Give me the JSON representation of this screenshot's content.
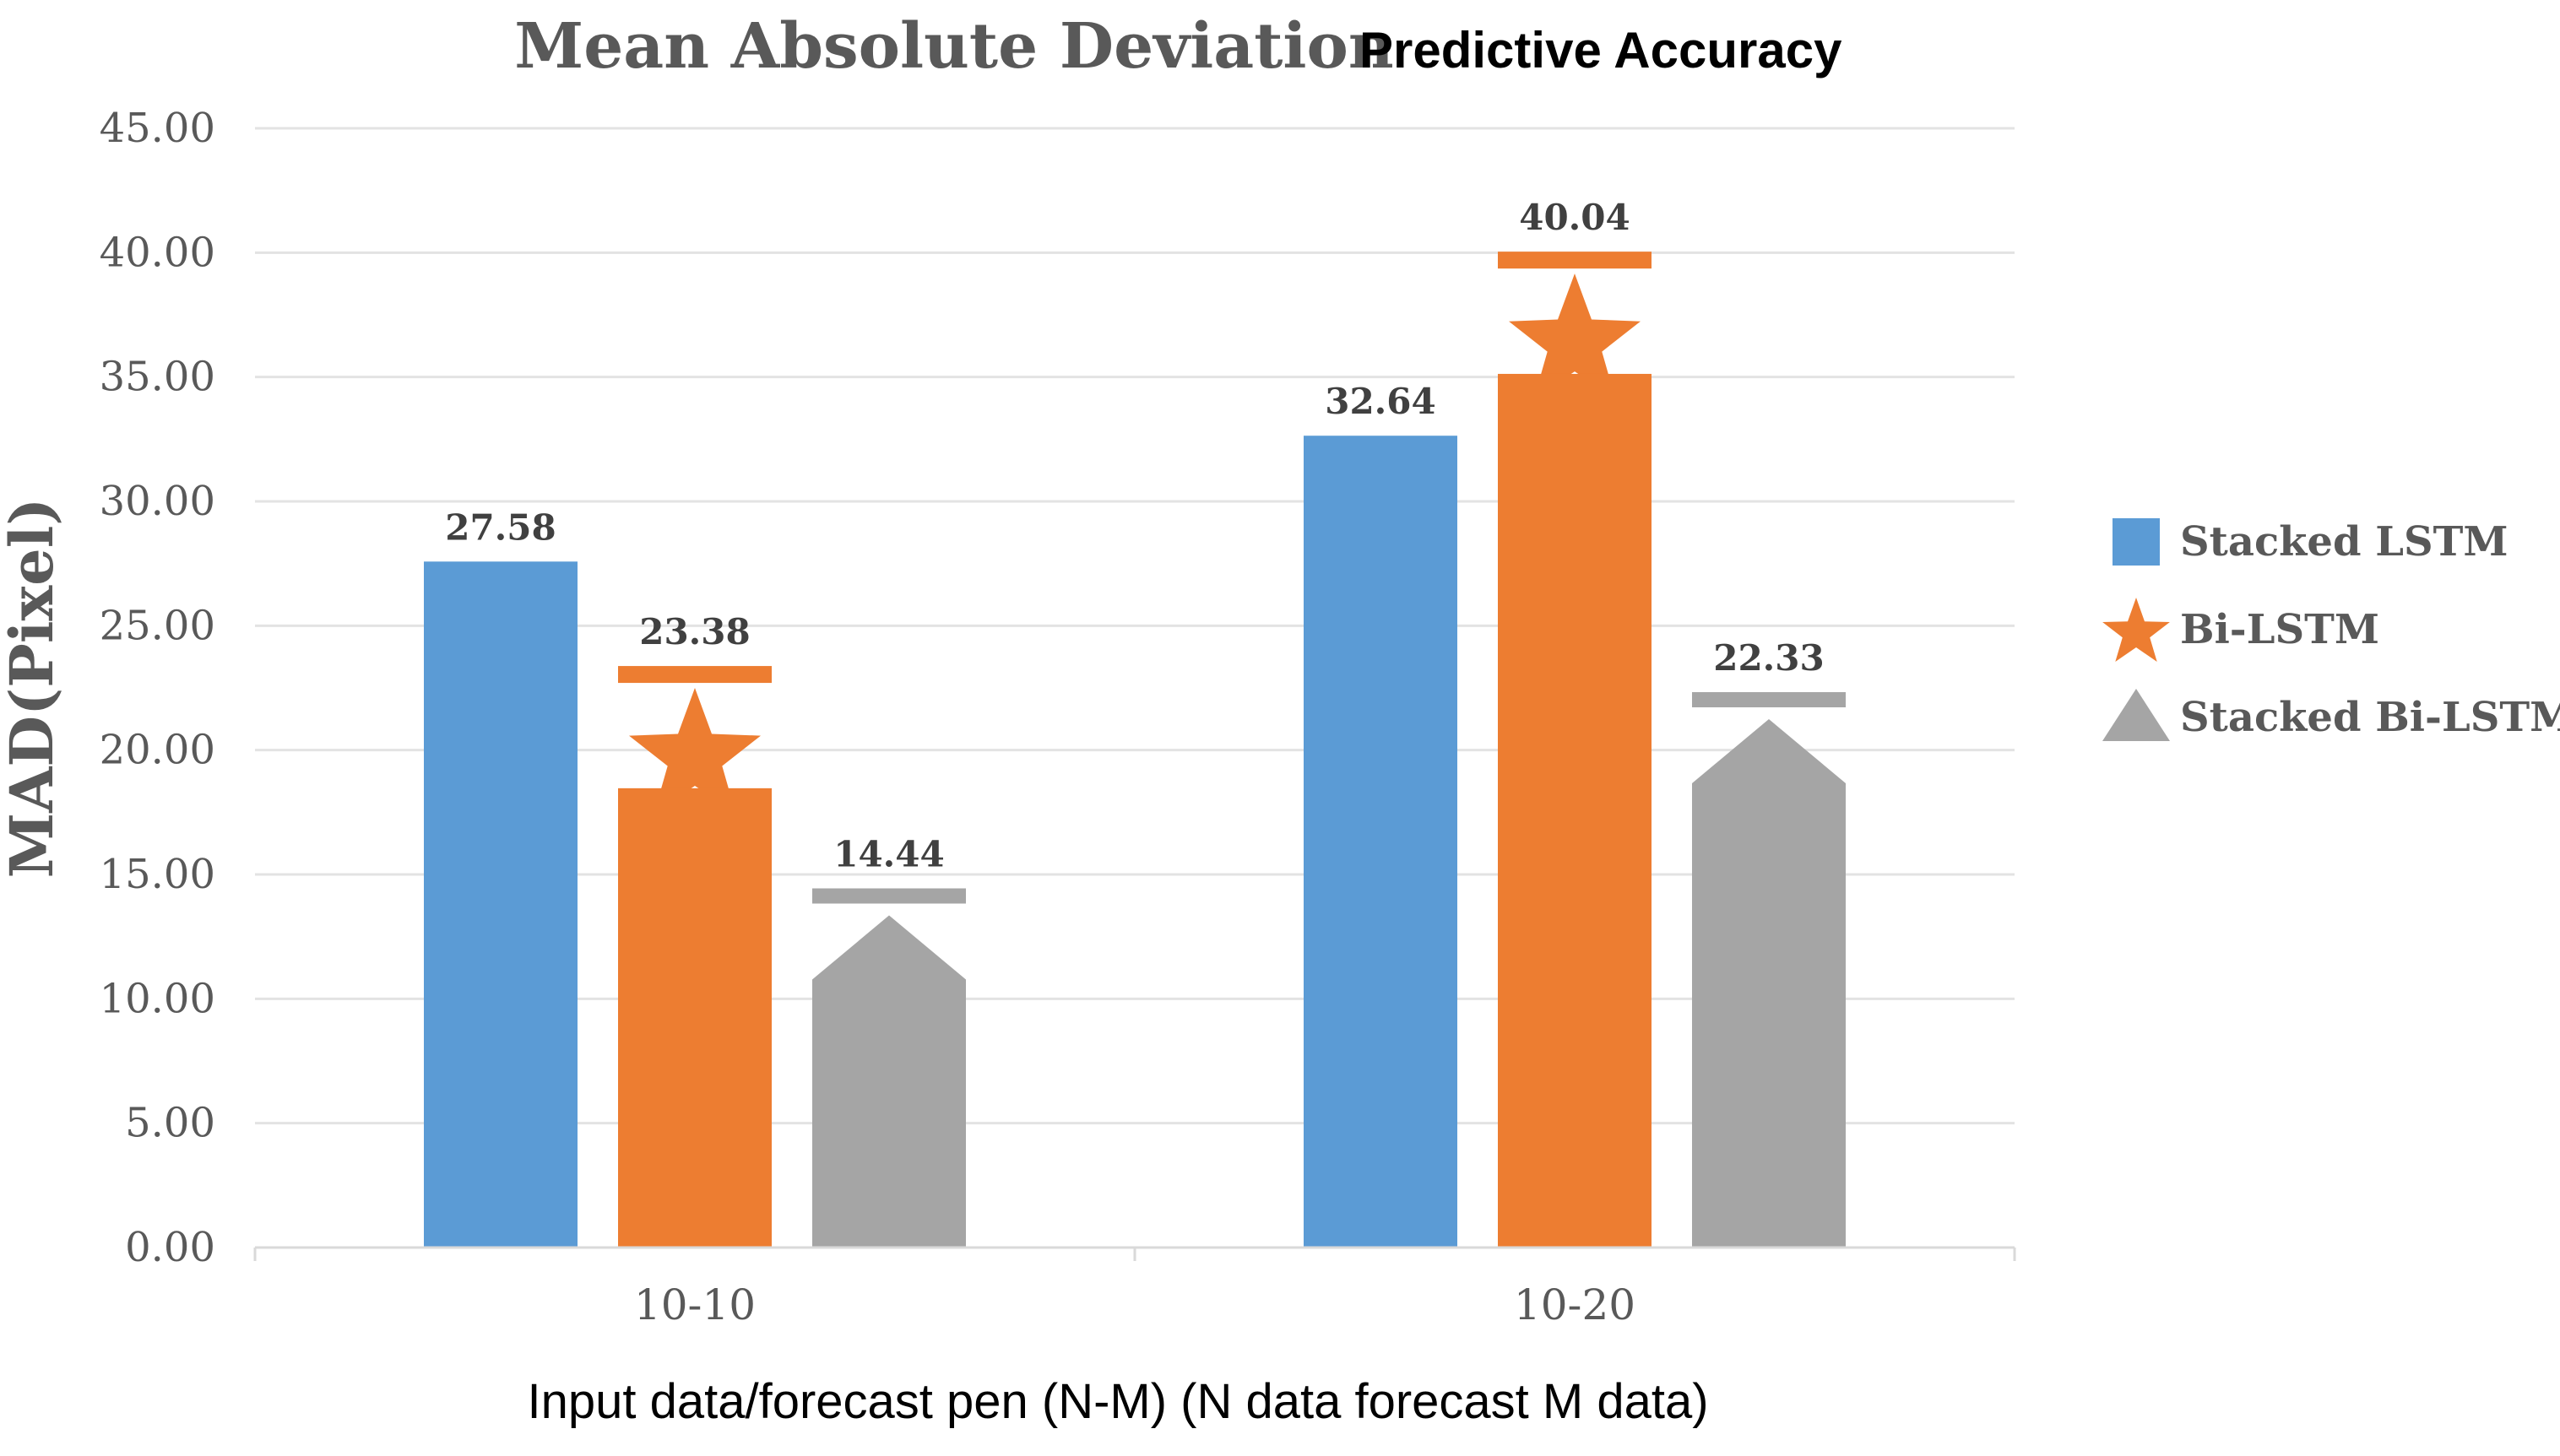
{
  "chart_data": {
    "type": "bar",
    "title_part1": "Mean Absolute Deviation",
    "title_part2": "Predictive Accuracy",
    "xlabel": "Input data/forecast pen (N-M) (N data forecast M data)",
    "ylabel": "MAD(Pixel)",
    "categories": [
      "10-10",
      "10-20"
    ],
    "series": [
      {
        "name": "Stacked LSTM",
        "values": [
          27.58,
          32.64
        ],
        "color": "#5B9BD5",
        "marker": "square"
      },
      {
        "name": "Bi-LSTM",
        "values": [
          23.38,
          40.04
        ],
        "color": "#ED7D31",
        "marker": "star"
      },
      {
        "name": "Stacked Bi-LSTM",
        "values": [
          14.44,
          22.33
        ],
        "color": "#A5A5A5",
        "marker": "triangle"
      }
    ],
    "ylim": [
      0,
      45
    ],
    "ytick_step": 5,
    "ytick_labels": [
      "0.00",
      "5.00",
      "10.00",
      "15.00",
      "20.00",
      "25.00",
      "30.00",
      "35.00",
      "40.00",
      "45.00"
    ],
    "data_labels": [
      [
        "27.58",
        "32.64"
      ],
      [
        "23.38",
        "40.04"
      ],
      [
        "14.44",
        "22.33"
      ]
    ],
    "grid": true,
    "legend_position": "right"
  }
}
